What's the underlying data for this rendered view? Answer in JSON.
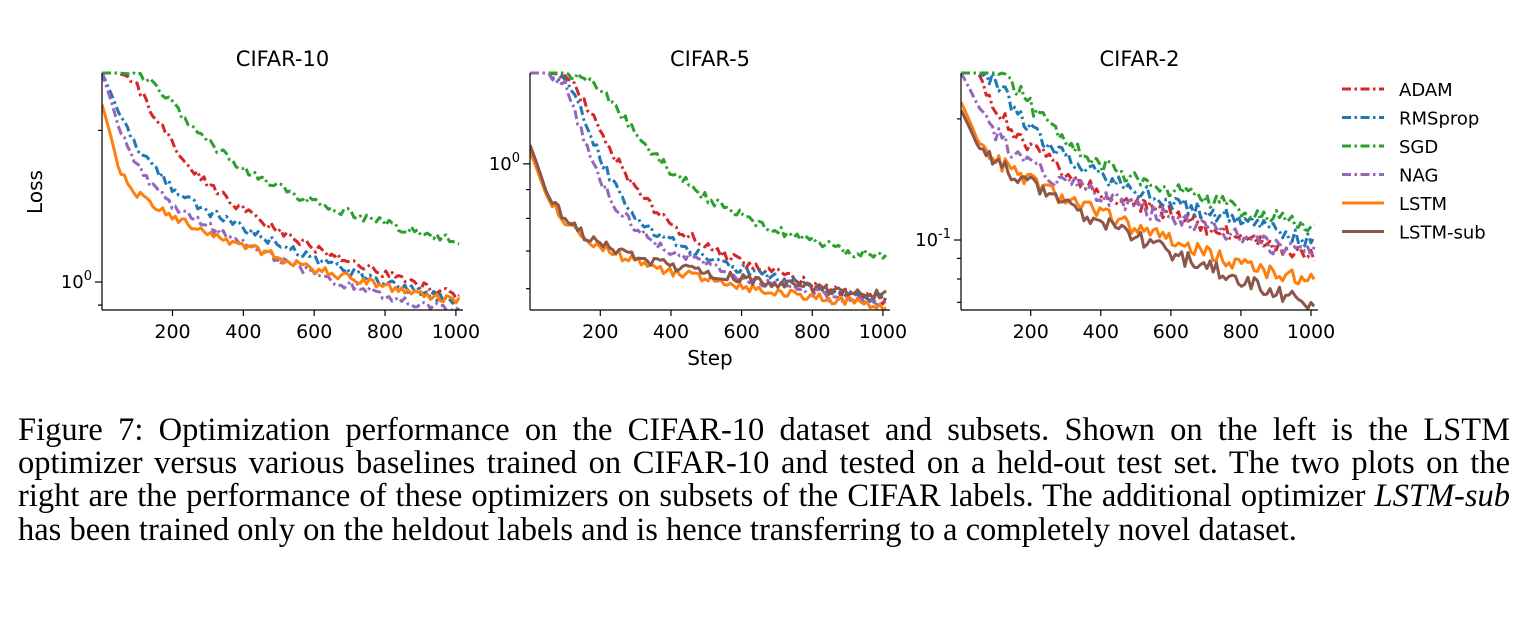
{
  "figure": {
    "common_xlabel": "Step",
    "common_ylabel": "Loss",
    "legend": [
      {
        "name": "ADAM",
        "color": "#d62728",
        "style": "dashdot"
      },
      {
        "name": "RMSprop",
        "color": "#1f77b4",
        "style": "dashdot"
      },
      {
        "name": "SGD",
        "color": "#2ca02c",
        "style": "dashdot"
      },
      {
        "name": "NAG",
        "color": "#9467bd",
        "style": "dashdot"
      },
      {
        "name": "LSTM",
        "color": "#ff7f0e",
        "style": "solid"
      },
      {
        "name": "LSTM-sub",
        "color": "#8c564b",
        "style": "solid"
      }
    ]
  },
  "caption": {
    "prefix": "Figure 7: Optimization performance on the CIFAR-10 dataset and subsets. Shown on the left is the LSTM optimizer versus various baselines trained on CIFAR-10 and tested on a held-out test set. The two plots on the right are the performance of these optimizers on subsets of the CIFAR labels. The additional optimizer ",
    "emph": "LSTM-sub",
    "suffix": " has been trained only on the heldout labels and is hence transferring to a completely novel dataset."
  },
  "chart_data": [
    {
      "type": "line",
      "title": "CIFAR-10",
      "xlabel": "",
      "ylabel": "Loss",
      "yscale": "log",
      "xlim": [
        1,
        1020
      ],
      "ylim": [
        0.88,
        2.6
      ],
      "xticks": [
        200,
        400,
        600,
        800,
        1000
      ],
      "yticks": [
        {
          "value": 1.0,
          "label": "10^0"
        }
      ],
      "x": [
        1,
        50,
        100,
        150,
        200,
        250,
        300,
        350,
        400,
        450,
        500,
        550,
        600,
        650,
        700,
        750,
        800,
        850,
        900,
        950,
        1000
      ],
      "series": [
        {
          "name": "ADAM",
          "values": [
            2.6,
            2.6,
            2.45,
            2.12,
            1.87,
            1.7,
            1.57,
            1.47,
            1.39,
            1.32,
            1.26,
            1.21,
            1.17,
            1.13,
            1.1,
            1.07,
            1.04,
            1.01,
            0.985,
            0.965,
            0.945
          ]
        },
        {
          "name": "RMSprop",
          "values": [
            2.6,
            2.15,
            1.86,
            1.67,
            1.54,
            1.45,
            1.38,
            1.33,
            1.28,
            1.23,
            1.19,
            1.15,
            1.11,
            1.08,
            1.05,
            1.02,
            0.995,
            0.975,
            0.955,
            0.935,
            0.92
          ]
        },
        {
          "name": "SGD",
          "values": [
            2.6,
            2.6,
            2.58,
            2.45,
            2.25,
            2.06,
            1.9,
            1.78,
            1.68,
            1.6,
            1.54,
            1.49,
            1.44,
            1.4,
            1.37,
            1.34,
            1.31,
            1.28,
            1.26,
            1.23,
            1.2
          ]
        },
        {
          "name": "NAG",
          "values": [
            2.6,
            2.0,
            1.7,
            1.53,
            1.42,
            1.35,
            1.29,
            1.24,
            1.19,
            1.15,
            1.11,
            1.07,
            1.04,
            1.01,
            0.985,
            0.96,
            0.94,
            0.92,
            0.905,
            0.89,
            0.88
          ]
        },
        {
          "name": "LSTM",
          "values": [
            2.25,
            1.65,
            1.5,
            1.41,
            1.35,
            1.3,
            1.26,
            1.22,
            1.18,
            1.15,
            1.12,
            1.09,
            1.06,
            1.04,
            1.02,
            1.0,
            0.98,
            0.96,
            0.945,
            0.93,
            0.915
          ]
        }
      ]
    },
    {
      "type": "line",
      "title": "CIFAR-5",
      "xlabel": "Step",
      "ylabel": "",
      "yscale": "log",
      "xlim": [
        1,
        1020
      ],
      "ylim": [
        0.55,
        1.45
      ],
      "xticks": [
        200,
        400,
        600,
        800,
        1000
      ],
      "yticks": [
        {
          "value": 1.0,
          "label": "10^0"
        }
      ],
      "x": [
        1,
        50,
        100,
        150,
        200,
        250,
        300,
        350,
        400,
        450,
        500,
        550,
        600,
        650,
        700,
        750,
        800,
        850,
        900,
        950,
        1000
      ],
      "series": [
        {
          "name": "ADAM",
          "values": [
            1.45,
            1.45,
            1.44,
            1.3,
            1.15,
            1.01,
            0.9,
            0.83,
            0.78,
            0.745,
            0.715,
            0.69,
            0.67,
            0.655,
            0.64,
            0.625,
            0.61,
            0.6,
            0.59,
            0.58,
            0.57
          ]
        },
        {
          "name": "RMSprop",
          "values": [
            1.45,
            1.45,
            1.42,
            1.22,
            1.02,
            0.89,
            0.81,
            0.76,
            0.73,
            0.705,
            0.685,
            0.665,
            0.65,
            0.635,
            0.625,
            0.615,
            0.605,
            0.595,
            0.585,
            0.58,
            0.575
          ]
        },
        {
          "name": "SGD",
          "values": [
            1.45,
            1.45,
            1.45,
            1.42,
            1.35,
            1.24,
            1.13,
            1.04,
            0.97,
            0.92,
            0.87,
            0.84,
            0.81,
            0.785,
            0.765,
            0.745,
            0.73,
            0.715,
            0.7,
            0.69,
            0.68
          ]
        },
        {
          "name": "NAG",
          "values": [
            1.45,
            1.45,
            1.38,
            1.12,
            0.93,
            0.83,
            0.77,
            0.73,
            0.7,
            0.68,
            0.66,
            0.645,
            0.63,
            0.62,
            0.61,
            0.6,
            0.59,
            0.58,
            0.575,
            0.57,
            0.565
          ]
        },
        {
          "name": "LSTM",
          "values": [
            1.05,
            0.87,
            0.79,
            0.74,
            0.71,
            0.69,
            0.67,
            0.655,
            0.645,
            0.635,
            0.625,
            0.615,
            0.608,
            0.6,
            0.593,
            0.587,
            0.58,
            0.575,
            0.57,
            0.565,
            0.56
          ]
        },
        {
          "name": "LSTM-sub",
          "values": [
            1.08,
            0.88,
            0.8,
            0.75,
            0.72,
            0.7,
            0.685,
            0.67,
            0.66,
            0.65,
            0.64,
            0.632,
            0.625,
            0.618,
            0.612,
            0.606,
            0.6,
            0.596,
            0.592,
            0.588,
            0.585
          ]
        }
      ]
    },
    {
      "type": "line",
      "title": "CIFAR-2",
      "xlabel": "",
      "ylabel": "",
      "yscale": "log",
      "xlim": [
        1,
        1020
      ],
      "ylim": [
        0.067,
        0.26
      ],
      "xticks": [
        200,
        400,
        600,
        800,
        1000
      ],
      "yticks": [
        {
          "value": 0.1,
          "label": "10^-1"
        }
      ],
      "x": [
        1,
        50,
        100,
        150,
        200,
        250,
        300,
        350,
        400,
        450,
        500,
        550,
        600,
        650,
        700,
        750,
        800,
        850,
        900,
        950,
        1000
      ],
      "series": [
        {
          "name": "ADAM",
          "values": [
            0.26,
            0.26,
            0.215,
            0.185,
            0.17,
            0.158,
            0.148,
            0.14,
            0.133,
            0.128,
            0.124,
            0.12,
            0.116,
            0.112,
            0.108,
            0.105,
            0.102,
            0.099,
            0.096,
            0.094,
            0.092
          ]
        },
        {
          "name": "RMSprop",
          "values": [
            0.26,
            0.26,
            0.25,
            0.215,
            0.19,
            0.172,
            0.16,
            0.151,
            0.144,
            0.138,
            0.133,
            0.129,
            0.125,
            0.121,
            0.118,
            0.115,
            0.112,
            0.109,
            0.106,
            0.103,
            0.1
          ]
        },
        {
          "name": "SGD",
          "values": [
            0.26,
            0.26,
            0.26,
            0.245,
            0.215,
            0.192,
            0.176,
            0.164,
            0.155,
            0.148,
            0.142,
            0.137,
            0.133,
            0.129,
            0.126,
            0.123,
            0.12,
            0.117,
            0.115,
            0.112,
            0.11
          ]
        },
        {
          "name": "NAG",
          "values": [
            0.26,
            0.215,
            0.185,
            0.165,
            0.153,
            0.145,
            0.139,
            0.134,
            0.129,
            0.125,
            0.121,
            0.117,
            0.114,
            0.111,
            0.108,
            0.105,
            0.102,
            0.099,
            0.096,
            0.094,
            0.092
          ]
        },
        {
          "name": "LSTM",
          "values": [
            0.22,
            0.175,
            0.158,
            0.148,
            0.14,
            0.133,
            0.127,
            0.121,
            0.116,
            0.111,
            0.107,
            0.103,
            0.099,
            0.096,
            0.093,
            0.09,
            0.087,
            0.085,
            0.083,
            0.081,
            0.079
          ]
        },
        {
          "name": "LSTM-sub",
          "values": [
            0.21,
            0.17,
            0.155,
            0.145,
            0.137,
            0.13,
            0.123,
            0.117,
            0.111,
            0.106,
            0.101,
            0.097,
            0.093,
            0.089,
            0.086,
            0.083,
            0.08,
            0.077,
            0.074,
            0.072,
            0.07
          ]
        }
      ]
    }
  ]
}
